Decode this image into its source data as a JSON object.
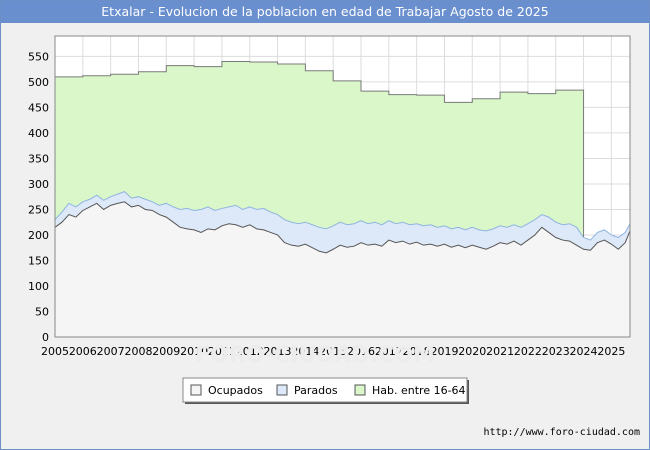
{
  "chart_data": {
    "type": "area",
    "title": "Etxalar - Evolucion de la poblacion en edad de Trabajar Agosto de 2025",
    "xlabel": "",
    "ylabel": "",
    "ylim": [
      0,
      590
    ],
    "xlim": [
      2005,
      2025.67
    ],
    "yticks": [
      0,
      50,
      100,
      150,
      200,
      250,
      300,
      350,
      400,
      450,
      500,
      550
    ],
    "xticks": [
      "2005",
      "2006",
      "2007",
      "2008",
      "2009",
      "2010",
      "2011",
      "2012",
      "2013",
      "2014",
      "2015",
      "2016",
      "2017",
      "2018",
      "2019",
      "2020",
      "2021",
      "2022",
      "2023",
      "2024",
      "2025"
    ],
    "grid": true,
    "legend_position": "bottom-center",
    "series": [
      {
        "name": "Hab. entre 16-64",
        "color": "#d9f7c8",
        "stroke": "#7a7a7a",
        "step_years": [
          2005,
          2006,
          2007,
          2008,
          2009,
          2010,
          2011,
          2012,
          2013,
          2014,
          2015,
          2016,
          2017,
          2018,
          2019,
          2020,
          2021,
          2022,
          2023
        ],
        "values": [
          510,
          512,
          515,
          520,
          532,
          530,
          540,
          539,
          535,
          522,
          502,
          482,
          475,
          474,
          460,
          467,
          480,
          477,
          484
        ],
        "end_year": 2024
      },
      {
        "name": "Parados",
        "color": "#dde9f8",
        "stroke": "#8fb4e0",
        "x": [
          2005,
          2005.25,
          2005.5,
          2005.75,
          2006,
          2006.25,
          2006.5,
          2006.75,
          2007,
          2007.25,
          2007.5,
          2007.75,
          2008,
          2008.25,
          2008.5,
          2008.75,
          2009,
          2009.25,
          2009.5,
          2009.75,
          2010,
          2010.25,
          2010.5,
          2010.75,
          2011,
          2011.25,
          2011.5,
          2011.75,
          2012,
          2012.25,
          2012.5,
          2012.75,
          2013,
          2013.25,
          2013.5,
          2013.75,
          2014,
          2014.25,
          2014.5,
          2014.75,
          2015,
          2015.25,
          2015.5,
          2015.75,
          2016,
          2016.25,
          2016.5,
          2016.75,
          2017,
          2017.25,
          2017.5,
          2017.75,
          2018,
          2018.25,
          2018.5,
          2018.75,
          2019,
          2019.25,
          2019.5,
          2019.75,
          2020,
          2020.25,
          2020.5,
          2020.75,
          2021,
          2021.25,
          2021.5,
          2021.75,
          2022,
          2022.25,
          2022.5,
          2022.75,
          2023,
          2023.25,
          2023.5,
          2023.75,
          2024,
          2024.25,
          2024.5,
          2024.75,
          2025,
          2025.25,
          2025.5,
          2025.67
        ],
        "values": [
          230,
          245,
          262,
          255,
          265,
          270,
          278,
          268,
          275,
          280,
          285,
          272,
          275,
          270,
          265,
          258,
          262,
          255,
          250,
          252,
          248,
          250,
          255,
          248,
          252,
          255,
          258,
          250,
          255,
          250,
          252,
          245,
          240,
          230,
          225,
          222,
          225,
          220,
          215,
          212,
          218,
          225,
          220,
          222,
          228,
          222,
          225,
          220,
          228,
          222,
          225,
          220,
          222,
          218,
          220,
          215,
          218,
          212,
          215,
          210,
          215,
          210,
          208,
          212,
          218,
          215,
          220,
          215,
          222,
          230,
          240,
          235,
          225,
          220,
          222,
          215,
          195,
          190,
          205,
          210,
          200,
          195,
          205,
          222
        ]
      },
      {
        "name": "Ocupados",
        "color": "#f5f5f5",
        "stroke": "#555555",
        "x": [
          2005,
          2005.25,
          2005.5,
          2005.75,
          2006,
          2006.25,
          2006.5,
          2006.75,
          2007,
          2007.25,
          2007.5,
          2007.75,
          2008,
          2008.25,
          2008.5,
          2008.75,
          2009,
          2009.25,
          2009.5,
          2009.75,
          2010,
          2010.25,
          2010.5,
          2010.75,
          2011,
          2011.25,
          2011.5,
          2011.75,
          2012,
          2012.25,
          2012.5,
          2012.75,
          2013,
          2013.25,
          2013.5,
          2013.75,
          2014,
          2014.25,
          2014.5,
          2014.75,
          2015,
          2015.25,
          2015.5,
          2015.75,
          2016,
          2016.25,
          2016.5,
          2016.75,
          2017,
          2017.25,
          2017.5,
          2017.75,
          2018,
          2018.25,
          2018.5,
          2018.75,
          2019,
          2019.25,
          2019.5,
          2019.75,
          2020,
          2020.25,
          2020.5,
          2020.75,
          2021,
          2021.25,
          2021.5,
          2021.75,
          2022,
          2022.25,
          2022.5,
          2022.75,
          2023,
          2023.25,
          2023.5,
          2023.75,
          2024,
          2024.25,
          2024.5,
          2024.75,
          2025,
          2025.25,
          2025.5,
          2025.67
        ],
        "values": [
          215,
          225,
          240,
          235,
          248,
          255,
          262,
          250,
          258,
          262,
          265,
          255,
          258,
          250,
          248,
          240,
          235,
          225,
          215,
          212,
          210,
          205,
          212,
          210,
          218,
          222,
          220,
          215,
          220,
          212,
          210,
          205,
          200,
          185,
          180,
          178,
          182,
          175,
          168,
          165,
          172,
          180,
          176,
          178,
          185,
          180,
          182,
          178,
          190,
          185,
          188,
          182,
          186,
          180,
          182,
          178,
          182,
          176,
          180,
          175,
          180,
          176,
          172,
          178,
          185,
          182,
          188,
          180,
          190,
          200,
          215,
          205,
          195,
          190,
          188,
          180,
          172,
          170,
          185,
          190,
          182,
          172,
          185,
          208
        ]
      }
    ]
  },
  "legend": {
    "items": [
      {
        "label": "Ocupados",
        "color": "#f5f5f5"
      },
      {
        "label": "Parados",
        "color": "#dde9f8"
      },
      {
        "label": "Hab. entre 16-64",
        "color": "#d9f7c8"
      }
    ]
  },
  "source": {
    "url": "http://www.foro-ciudad.com"
  },
  "watermark": "FORO-CIUDAD.COM"
}
